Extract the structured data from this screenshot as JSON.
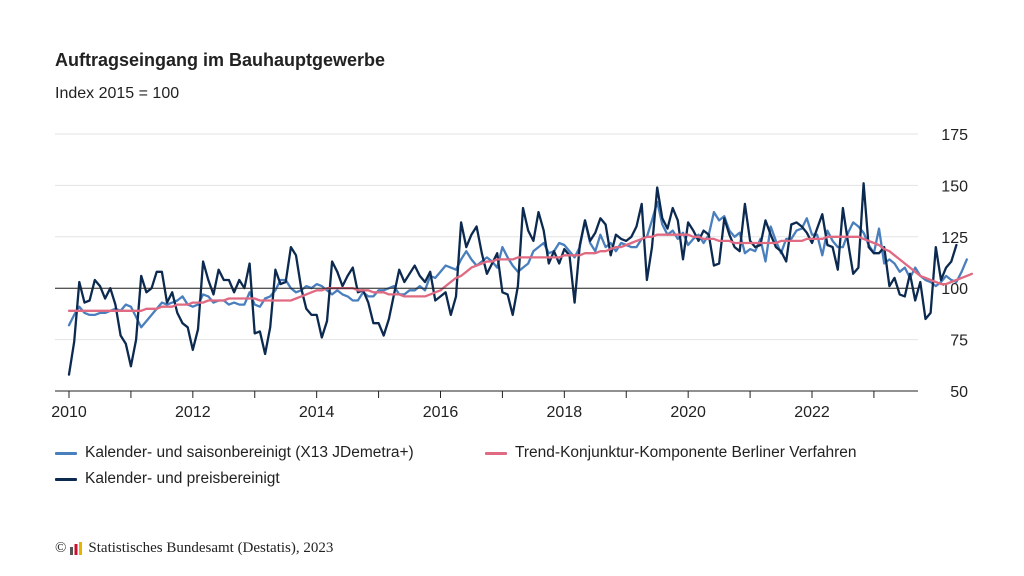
{
  "chart_data": {
    "type": "line",
    "title": "Auftragseingang im Bauhauptgewerbe",
    "subtitle": "Index 2015 = 100",
    "ylim": [
      50,
      175
    ],
    "yticks": [
      50,
      75,
      100,
      125,
      150,
      175
    ],
    "xlim": [
      2010,
      2023.7
    ],
    "xticks": [
      "2010",
      "2012",
      "2014",
      "2016",
      "2018",
      "2020",
      "2022"
    ],
    "reference_line": 100,
    "legend_position": "bottom",
    "series": [
      {
        "name": "Kalender- und saisonbereinigt (X13 JDemetra+)",
        "color": "#4a7fbd",
        "x_start": 2010.0,
        "step": 0.08333,
        "values": [
          82,
          87,
          91,
          88,
          87,
          87,
          88,
          88,
          89,
          90,
          89,
          92,
          91,
          86,
          81,
          84,
          87,
          90,
          93,
          92,
          93,
          94,
          96,
          92,
          91,
          92,
          97,
          96,
          93,
          94,
          94,
          92,
          93,
          92,
          92,
          98,
          92,
          91,
          95,
          96,
          99,
          104,
          104,
          100,
          98,
          99,
          101,
          100,
          102,
          101,
          99,
          97,
          99,
          97,
          96,
          94,
          94,
          98,
          96,
          96,
          99,
          99,
          100,
          101,
          97,
          97,
          99,
          99,
          101,
          99,
          106,
          105,
          108,
          111,
          110,
          109,
          114,
          118,
          114,
          111,
          113,
          115,
          113,
          110,
          120,
          115,
          111,
          108,
          110,
          112,
          118,
          120,
          122,
          117,
          118,
          122,
          121,
          118,
          115,
          120,
          133,
          122,
          118,
          126,
          120,
          122,
          118,
          122,
          121,
          120,
          120,
          124,
          125,
          133,
          142,
          131,
          126,
          128,
          124,
          127,
          121,
          124,
          126,
          122,
          126,
          137,
          133,
          135,
          128,
          125,
          127,
          117,
          119,
          118,
          124,
          113,
          130,
          123,
          117,
          124,
          124,
          128,
          129,
          134,
          126,
          126,
          116,
          128,
          123,
          120,
          120,
          127,
          132,
          130,
          127,
          121,
          117,
          129,
          112,
          114,
          112,
          108,
          110,
          105,
          110,
          106,
          104,
          103,
          101,
          103,
          106,
          104,
          103,
          108,
          114
        ]
      },
      {
        "name": "Trend-Konjunktur-Komponente Berliner Verfahren",
        "color": "#e06a82",
        "x_start": 2010.0,
        "step": 0.08333,
        "values": [
          89,
          89,
          89,
          89,
          89,
          89,
          89,
          89,
          89,
          89,
          89,
          89,
          89,
          89,
          89,
          90,
          90,
          90,
          91,
          91,
          91,
          92,
          92,
          92,
          93,
          93,
          93,
          94,
          94,
          94,
          94,
          95,
          95,
          95,
          95,
          95,
          95,
          94,
          94,
          94,
          94,
          94,
          94,
          94,
          95,
          96,
          97,
          98,
          99,
          99,
          100,
          100,
          100,
          100,
          100,
          100,
          99,
          99,
          99,
          98,
          98,
          98,
          97,
          97,
          97,
          96,
          96,
          96,
          96,
          96,
          97,
          98,
          99,
          101,
          103,
          105,
          106,
          108,
          110,
          111,
          112,
          113,
          113,
          114,
          114,
          114,
          114,
          115,
          115,
          115,
          115,
          115,
          115,
          115,
          115,
          115,
          116,
          116,
          116,
          116,
          117,
          117,
          117,
          118,
          118,
          119,
          120,
          120,
          121,
          122,
          123,
          124,
          125,
          125,
          126,
          126,
          126,
          126,
          126,
          126,
          126,
          125,
          125,
          124,
          124,
          124,
          123,
          123,
          123,
          122,
          122,
          122,
          122,
          122,
          122,
          122,
          122,
          122,
          123,
          123,
          123,
          123,
          123,
          124,
          124,
          124,
          124,
          125,
          125,
          125,
          125,
          125,
          125,
          125,
          124,
          123,
          122,
          121,
          119,
          118,
          116,
          114,
          112,
          110,
          108,
          106,
          105,
          104,
          103,
          102,
          102,
          103,
          104,
          105,
          106,
          107
        ]
      },
      {
        "name": "Kalender- und preisbereinigt",
        "color": "#0c2a50",
        "x_start": 2010.0,
        "step": 0.08333,
        "values": [
          58,
          74,
          103,
          93,
          94,
          104,
          101,
          95,
          100,
          92,
          77,
          73,
          62,
          75,
          106,
          98,
          100,
          108,
          108,
          93,
          98,
          88,
          83,
          81,
          70,
          80,
          113,
          104,
          97,
          109,
          104,
          104,
          98,
          104,
          100,
          112,
          78,
          79,
          68,
          81,
          109,
          102,
          103,
          120,
          116,
          100,
          90,
          87,
          87,
          76,
          84,
          113,
          108,
          101,
          106,
          110,
          98,
          99,
          93,
          83,
          83,
          77,
          85,
          97,
          109,
          103,
          107,
          111,
          106,
          103,
          108,
          94,
          96,
          98,
          87,
          96,
          132,
          120,
          126,
          130,
          117,
          107,
          112,
          117,
          98,
          97,
          87,
          101,
          139,
          128,
          123,
          137,
          128,
          112,
          118,
          112,
          119,
          116,
          93,
          121,
          133,
          123,
          127,
          134,
          131,
          116,
          126,
          124,
          123,
          125,
          130,
          141,
          104,
          120,
          149,
          134,
          129,
          139,
          133,
          114,
          132,
          128,
          123,
          128,
          126,
          111,
          112,
          134,
          126,
          120,
          118,
          141,
          123,
          120,
          121,
          133,
          126,
          120,
          118,
          113,
          131,
          132,
          130,
          127,
          122,
          129,
          136,
          121,
          120,
          109,
          139,
          122,
          107,
          110,
          151,
          120,
          117,
          117,
          120,
          101,
          105,
          97,
          96,
          107,
          94,
          103,
          85,
          88,
          120,
          104,
          110,
          113,
          121
        ]
      }
    ]
  },
  "legend": [
    {
      "label": "Kalender- und saisonbereinigt (X13 JDemetra+)",
      "color": "#4a7fbd"
    },
    {
      "label": "Trend-Konjunktur-Komponente Berliner Verfahren",
      "color": "#e06a82"
    },
    {
      "label": "Kalender- und preisbereinigt",
      "color": "#0c2a50"
    }
  ],
  "source": {
    "copyright": "©",
    "text": "Statistisches Bundesamt (Destatis), 2023"
  }
}
